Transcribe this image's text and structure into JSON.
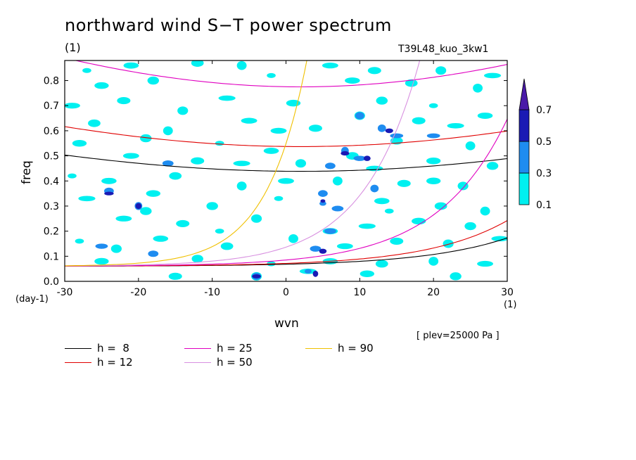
{
  "title": "northward wind S−T power spectrum",
  "subtitle_left": "(1)",
  "subtitle_right": "T39L48_kuo_3kw1",
  "annotation": "[ plev=25000 Pa ]",
  "chart_data": {
    "type": "heatmap",
    "xlabel": "wvn",
    "ylabel": "freq",
    "x_unit": "(1)",
    "y_unit": "(day-1)",
    "xlim": [
      -30,
      30
    ],
    "ylim": [
      0,
      0.88
    ],
    "xticks": [
      -30,
      -20,
      -10,
      0,
      10,
      20,
      30
    ],
    "yticks": [
      0.0,
      0.1,
      0.2,
      0.3,
      0.4,
      0.5,
      0.6,
      0.7,
      0.8
    ],
    "ytick_labels": [
      "0.0",
      "0.1",
      "0.2",
      "0.3",
      "0.4",
      "0.5",
      "0.6",
      "0.7",
      "0.8"
    ],
    "colorbar": {
      "levels": [
        "0.1",
        "0.3",
        "0.5",
        "0.7"
      ],
      "colors": [
        "#00f0f0",
        "#1e8cf0",
        "#1a1ab4",
        "#4a1aa8"
      ],
      "extend": "max"
    },
    "curves": [
      {
        "label": "h =  8",
        "color": "#000000"
      },
      {
        "label": "h = 12",
        "color": "#e00000"
      },
      {
        "label": "h = 25",
        "color": "#e000c0"
      },
      {
        "label": "h = 50",
        "color": "#d890e0"
      },
      {
        "label": "h = 90",
        "color": "#f0c000"
      }
    ],
    "blobs_level1": [
      [
        -27,
        0.84
      ],
      [
        -21,
        0.86
      ],
      [
        -12,
        0.87
      ],
      [
        -6,
        0.86
      ],
      [
        6,
        0.86
      ],
      [
        12,
        0.84
      ],
      [
        21,
        0.84
      ],
      [
        28,
        0.82
      ],
      [
        -25,
        0.78
      ],
      [
        -18,
        0.8
      ],
      [
        -2,
        0.82
      ],
      [
        9,
        0.8
      ],
      [
        17,
        0.79
      ],
      [
        26,
        0.77
      ],
      [
        -29,
        0.7
      ],
      [
        -22,
        0.72
      ],
      [
        -14,
        0.68
      ],
      [
        -8,
        0.73
      ],
      [
        1,
        0.71
      ],
      [
        13,
        0.72
      ],
      [
        20,
        0.7
      ],
      [
        27,
        0.66
      ],
      [
        -26,
        0.63
      ],
      [
        -16,
        0.6
      ],
      [
        -5,
        0.64
      ],
      [
        4,
        0.61
      ],
      [
        10,
        0.66
      ],
      [
        23,
        0.62
      ],
      [
        -28,
        0.55
      ],
      [
        -19,
        0.57
      ],
      [
        -9,
        0.55
      ],
      [
        -2,
        0.52
      ],
      [
        15,
        0.56
      ],
      [
        25,
        0.54
      ],
      [
        -21,
        0.5
      ],
      [
        -12,
        0.48
      ],
      [
        2,
        0.47
      ],
      [
        12,
        0.45
      ],
      [
        20,
        0.48
      ],
      [
        28,
        0.46
      ],
      [
        -29,
        0.42
      ],
      [
        -24,
        0.4
      ],
      [
        -15,
        0.42
      ],
      [
        -6,
        0.38
      ],
      [
        0,
        0.4
      ],
      [
        16,
        0.39
      ],
      [
        24,
        0.38
      ],
      [
        -27,
        0.33
      ],
      [
        -18,
        0.35
      ],
      [
        -10,
        0.3
      ],
      [
        -1,
        0.33
      ],
      [
        13,
        0.32
      ],
      [
        21,
        0.3
      ],
      [
        27,
        0.28
      ],
      [
        -22,
        0.25
      ],
      [
        -14,
        0.23
      ],
      [
        -4,
        0.25
      ],
      [
        11,
        0.22
      ],
      [
        18,
        0.24
      ],
      [
        25,
        0.22
      ],
      [
        -28,
        0.16
      ],
      [
        -17,
        0.17
      ],
      [
        -8,
        0.14
      ],
      [
        1,
        0.17
      ],
      [
        8,
        0.14
      ],
      [
        15,
        0.16
      ],
      [
        22,
        0.15
      ],
      [
        29,
        0.17
      ],
      [
        -25,
        0.08
      ],
      [
        -12,
        0.09
      ],
      [
        -2,
        0.07
      ],
      [
        6,
        0.08
      ],
      [
        13,
        0.07
      ],
      [
        20,
        0.08
      ],
      [
        27,
        0.07
      ],
      [
        -15,
        0.02
      ],
      [
        -4,
        0.02
      ],
      [
        3,
        0.04
      ],
      [
        11,
        0.03
      ],
      [
        23,
        0.02
      ],
      [
        -9,
        0.2
      ],
      [
        6,
        0.2
      ],
      [
        9,
        0.5
      ],
      [
        7,
        0.4
      ],
      [
        -1,
        0.6
      ],
      [
        18,
        0.64
      ],
      [
        -23,
        0.13
      ],
      [
        -6,
        0.47
      ],
      [
        20,
        0.4
      ],
      [
        -19,
        0.28
      ],
      [
        14,
        0.28
      ]
    ],
    "blobs_level2": [
      [
        5,
        0.31
      ],
      [
        7,
        0.29
      ],
      [
        5,
        0.35
      ],
      [
        8,
        0.52
      ],
      [
        10,
        0.49
      ],
      [
        6,
        0.46
      ],
      [
        13,
        0.61
      ],
      [
        15,
        0.58
      ],
      [
        4,
        0.13
      ],
      [
        -4,
        0.02
      ],
      [
        3,
        0.04
      ],
      [
        6,
        0.2
      ],
      [
        -24,
        0.36
      ],
      [
        -20,
        0.3
      ],
      [
        -25,
        0.14
      ],
      [
        -18,
        0.11
      ],
      [
        12,
        0.37
      ],
      [
        20,
        0.58
      ],
      [
        -16,
        0.47
      ],
      [
        10,
        0.66
      ]
    ],
    "blobs_level3": [
      [
        5,
        0.32
      ],
      [
        8,
        0.51
      ],
      [
        11,
        0.49
      ],
      [
        4,
        0.03
      ],
      [
        -4,
        0.02
      ],
      [
        5,
        0.12
      ],
      [
        -20,
        0.3
      ],
      [
        -24,
        0.35
      ],
      [
        14,
        0.6
      ]
    ]
  }
}
